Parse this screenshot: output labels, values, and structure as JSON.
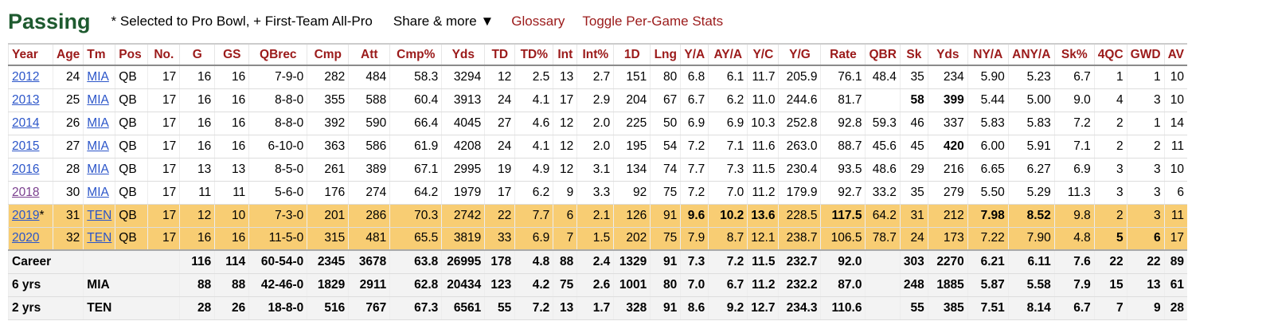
{
  "header": {
    "title": "Passing",
    "note": "* Selected to Pro Bowl, + First-Team All-Pro",
    "share_label": "Share & more ▼",
    "glossary_label": "Glossary",
    "toggle_label": "Toggle Per-Game Stats"
  },
  "columns": [
    "Year",
    "Age",
    "Tm",
    "Pos",
    "No.",
    "G",
    "GS",
    "QBrec",
    "Cmp",
    "Att",
    "Cmp%",
    "Yds",
    "TD",
    "TD%",
    "Int",
    "Int%",
    "1D",
    "Lng",
    "Y/A",
    "AY/A",
    "Y/C",
    "Y/G",
    "Rate",
    "QBR",
    "Sk",
    "Yds",
    "NY/A",
    "ANY/A",
    "Sk%",
    "4QC",
    "GWD",
    "AV"
  ],
  "rows": [
    {
      "year": "2012",
      "mark": "",
      "age": "24",
      "tm": "MIA",
      "pos": "QB",
      "no": "17",
      "g": "16",
      "gs": "16",
      "qbrec": "7-9-0",
      "cmp": "282",
      "att": "484",
      "cmp_pct": "58.3",
      "yds": "3294",
      "td": "12",
      "td_pct": "2.5",
      "int": "13",
      "int_pct": "2.7",
      "fd": "151",
      "lng": "80",
      "ya": "6.8",
      "aya": "6.1",
      "yc": "11.7",
      "yg": "205.9",
      "rate": "76.1",
      "qbr": "48.4",
      "sk": "35",
      "sk_yds": "234",
      "nya": "5.90",
      "anya": "5.23",
      "sk_pct": "6.7",
      "fqc": "1",
      "gwd": "1",
      "av": "10"
    },
    {
      "year": "2013",
      "mark": "",
      "age": "25",
      "tm": "MIA",
      "pos": "QB",
      "no": "17",
      "g": "16",
      "gs": "16",
      "qbrec": "8-8-0",
      "cmp": "355",
      "att": "588",
      "cmp_pct": "60.4",
      "yds": "3913",
      "td": "24",
      "td_pct": "4.1",
      "int": "17",
      "int_pct": "2.9",
      "fd": "204",
      "lng": "67",
      "ya": "6.7",
      "aya": "6.2",
      "yc": "11.0",
      "yg": "244.6",
      "rate": "81.7",
      "qbr": "",
      "sk": "58",
      "sk_yds": "399",
      "nya": "5.44",
      "anya": "5.00",
      "sk_pct": "9.0",
      "fqc": "4",
      "gwd": "3",
      "av": "10"
    },
    {
      "year": "2014",
      "mark": "",
      "age": "26",
      "tm": "MIA",
      "pos": "QB",
      "no": "17",
      "g": "16",
      "gs": "16",
      "qbrec": "8-8-0",
      "cmp": "392",
      "att": "590",
      "cmp_pct": "66.4",
      "yds": "4045",
      "td": "27",
      "td_pct": "4.6",
      "int": "12",
      "int_pct": "2.0",
      "fd": "225",
      "lng": "50",
      "ya": "6.9",
      "aya": "6.9",
      "yc": "10.3",
      "yg": "252.8",
      "rate": "92.8",
      "qbr": "59.3",
      "sk": "46",
      "sk_yds": "337",
      "nya": "5.83",
      "anya": "5.83",
      "sk_pct": "7.2",
      "fqc": "2",
      "gwd": "1",
      "av": "14"
    },
    {
      "year": "2015",
      "mark": "",
      "age": "27",
      "tm": "MIA",
      "pos": "QB",
      "no": "17",
      "g": "16",
      "gs": "16",
      "qbrec": "6-10-0",
      "cmp": "363",
      "att": "586",
      "cmp_pct": "61.9",
      "yds": "4208",
      "td": "24",
      "td_pct": "4.1",
      "int": "12",
      "int_pct": "2.0",
      "fd": "195",
      "lng": "54",
      "ya": "7.2",
      "aya": "7.1",
      "yc": "11.6",
      "yg": "263.0",
      "rate": "88.7",
      "qbr": "45.6",
      "sk": "45",
      "sk_yds": "420",
      "nya": "6.00",
      "anya": "5.91",
      "sk_pct": "7.1",
      "fqc": "2",
      "gwd": "2",
      "av": "11"
    },
    {
      "year": "2016",
      "mark": "",
      "age": "28",
      "tm": "MIA",
      "pos": "QB",
      "no": "17",
      "g": "13",
      "gs": "13",
      "qbrec": "8-5-0",
      "cmp": "261",
      "att": "389",
      "cmp_pct": "67.1",
      "yds": "2995",
      "td": "19",
      "td_pct": "4.9",
      "int": "12",
      "int_pct": "3.1",
      "fd": "134",
      "lng": "74",
      "ya": "7.7",
      "aya": "7.3",
      "yc": "11.5",
      "yg": "230.4",
      "rate": "93.5",
      "qbr": "48.6",
      "sk": "29",
      "sk_yds": "216",
      "nya": "6.65",
      "anya": "6.27",
      "sk_pct": "6.9",
      "fqc": "3",
      "gwd": "3",
      "av": "10"
    },
    {
      "year": "2018",
      "mark": "",
      "age": "30",
      "tm": "MIA",
      "pos": "QB",
      "no": "17",
      "g": "11",
      "gs": "11",
      "qbrec": "5-6-0",
      "cmp": "176",
      "att": "274",
      "cmp_pct": "64.2",
      "yds": "1979",
      "td": "17",
      "td_pct": "6.2",
      "int": "9",
      "int_pct": "3.3",
      "fd": "92",
      "lng": "75",
      "ya": "7.2",
      "aya": "7.0",
      "yc": "11.2",
      "yg": "179.9",
      "rate": "92.7",
      "qbr": "33.2",
      "sk": "35",
      "sk_yds": "279",
      "nya": "5.50",
      "anya": "5.29",
      "sk_pct": "11.3",
      "fqc": "3",
      "gwd": "3",
      "av": "6"
    },
    {
      "year": "2019",
      "mark": "*",
      "age": "31",
      "tm": "TEN",
      "pos": "QB",
      "no": "17",
      "g": "12",
      "gs": "10",
      "qbrec": "7-3-0",
      "cmp": "201",
      "att": "286",
      "cmp_pct": "70.3",
      "yds": "2742",
      "td": "22",
      "td_pct": "7.7",
      "int": "6",
      "int_pct": "2.1",
      "fd": "126",
      "lng": "91",
      "ya": "9.6",
      "aya": "10.2",
      "yc": "13.6",
      "yg": "228.5",
      "rate": "117.5",
      "qbr": "64.2",
      "sk": "31",
      "sk_yds": "212",
      "nya": "7.98",
      "anya": "8.52",
      "sk_pct": "9.8",
      "fqc": "2",
      "gwd": "3",
      "av": "11"
    },
    {
      "year": "2020",
      "mark": "",
      "age": "32",
      "tm": "TEN",
      "pos": "QB",
      "no": "17",
      "g": "16",
      "gs": "16",
      "qbrec": "11-5-0",
      "cmp": "315",
      "att": "481",
      "cmp_pct": "65.5",
      "yds": "3819",
      "td": "33",
      "td_pct": "6.9",
      "int": "7",
      "int_pct": "1.5",
      "fd": "202",
      "lng": "75",
      "ya": "7.9",
      "aya": "8.7",
      "yc": "12.1",
      "yg": "238.7",
      "rate": "106.5",
      "qbr": "78.7",
      "sk": "24",
      "sk_yds": "173",
      "nya": "7.22",
      "anya": "7.90",
      "sk_pct": "4.8",
      "fqc": "5",
      "gwd": "6",
      "av": "17"
    }
  ],
  "totals": [
    {
      "label": "Career",
      "tm": "",
      "g": "116",
      "gs": "114",
      "qbrec": "60-54-0",
      "cmp": "2345",
      "att": "3678",
      "cmp_pct": "63.8",
      "yds": "26995",
      "td": "178",
      "td_pct": "4.8",
      "int": "88",
      "int_pct": "2.4",
      "fd": "1329",
      "lng": "91",
      "ya": "7.3",
      "aya": "7.2",
      "yc": "11.5",
      "yg": "232.7",
      "rate": "92.0",
      "qbr": "",
      "sk": "303",
      "sk_yds": "2270",
      "nya": "6.21",
      "anya": "6.11",
      "sk_pct": "7.6",
      "fqc": "22",
      "gwd": "22",
      "av": "89"
    },
    {
      "label": "6 yrs",
      "tm": "MIA",
      "g": "88",
      "gs": "88",
      "qbrec": "42-46-0",
      "cmp": "1829",
      "att": "2911",
      "cmp_pct": "62.8",
      "yds": "20434",
      "td": "123",
      "td_pct": "4.2",
      "int": "75",
      "int_pct": "2.6",
      "fd": "1001",
      "lng": "80",
      "ya": "7.0",
      "aya": "6.7",
      "yc": "11.2",
      "yg": "232.2",
      "rate": "87.0",
      "qbr": "",
      "sk": "248",
      "sk_yds": "1885",
      "nya": "5.87",
      "anya": "5.58",
      "sk_pct": "7.9",
      "fqc": "15",
      "gwd": "13",
      "av": "61"
    },
    {
      "label": "2 yrs",
      "tm": "TEN",
      "g": "28",
      "gs": "26",
      "qbrec": "18-8-0",
      "cmp": "516",
      "att": "767",
      "cmp_pct": "67.3",
      "yds": "6561",
      "td": "55",
      "td_pct": "7.2",
      "int": "13",
      "int_pct": "1.7",
      "fd": "328",
      "lng": "91",
      "ya": "8.6",
      "aya": "9.2",
      "yc": "12.7",
      "yg": "234.3",
      "rate": "110.6",
      "qbr": "",
      "sk": "55",
      "sk_yds": "385",
      "nya": "7.51",
      "anya": "8.14",
      "sk_pct": "6.7",
      "fqc": "7",
      "gwd": "9",
      "av": "28"
    }
  ],
  "colors": {
    "title": "#1e5a2f",
    "header_text": "#9b1a1a",
    "link": "#2b55c9",
    "visited_link": "#7a3f8e",
    "pro_bowl_row": "#f8cd73"
  }
}
